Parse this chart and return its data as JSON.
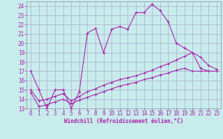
{
  "xlabel": "Windchill (Refroidissement éolien,°C)",
  "xlim": [
    -0.5,
    23.5
  ],
  "ylim": [
    13,
    24.5
  ],
  "yticks": [
    13,
    14,
    15,
    16,
    17,
    18,
    19,
    20,
    21,
    22,
    23,
    24
  ],
  "xticks": [
    0,
    1,
    2,
    3,
    4,
    5,
    6,
    7,
    8,
    9,
    10,
    11,
    12,
    13,
    14,
    15,
    16,
    17,
    18,
    19,
    20,
    21,
    22,
    23
  ],
  "bg_color": "#c8ecec",
  "line_color": "#aa22aa",
  "grid_color": "#aaaacc",
  "line1_x": [
    0,
    1,
    2,
    3,
    4,
    5,
    6,
    7,
    8,
    9,
    10,
    11,
    12,
    13,
    14,
    15,
    16,
    17,
    18,
    19,
    20,
    21,
    22,
    23
  ],
  "line1_y": [
    17.0,
    15.0,
    13.0,
    15.0,
    15.0,
    13.0,
    14.8,
    21.1,
    21.6,
    19.0,
    21.5,
    21.8,
    21.5,
    23.3,
    23.3,
    24.2,
    23.5,
    22.3,
    20.0,
    19.5,
    19.0,
    17.3,
    17.0,
    17.0
  ],
  "line2_x": [
    0,
    1,
    2,
    3,
    4,
    5,
    6,
    7,
    8,
    9,
    10,
    11,
    12,
    13,
    14,
    15,
    16,
    17,
    18,
    19,
    20,
    21,
    22,
    23
  ],
  "line2_y": [
    14.7,
    13.2,
    13.4,
    13.7,
    14.0,
    13.5,
    13.9,
    14.2,
    14.5,
    14.8,
    15.1,
    15.4,
    15.6,
    15.8,
    16.1,
    16.3,
    16.6,
    16.8,
    17.1,
    17.3,
    17.0,
    17.0,
    17.0,
    17.0
  ],
  "line3_x": [
    0,
    1,
    2,
    3,
    4,
    5,
    6,
    7,
    8,
    9,
    10,
    11,
    12,
    13,
    14,
    15,
    16,
    17,
    18,
    19,
    20,
    21,
    22,
    23
  ],
  "line3_y": [
    15.0,
    13.8,
    14.0,
    14.3,
    14.6,
    13.8,
    14.3,
    14.8,
    15.1,
    15.5,
    15.8,
    16.1,
    16.3,
    16.5,
    16.8,
    17.1,
    17.5,
    17.8,
    18.2,
    18.6,
    19.0,
    18.5,
    17.6,
    17.2
  ]
}
